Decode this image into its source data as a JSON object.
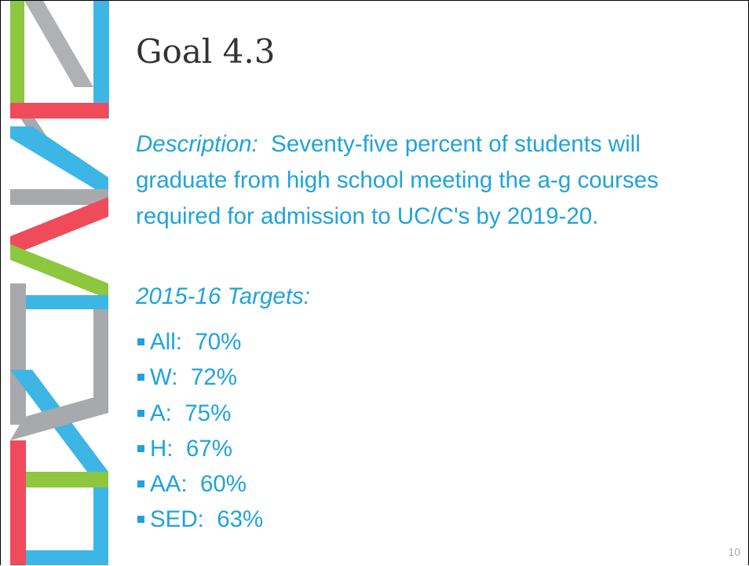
{
  "slide": {
    "title": "Goal 4.3",
    "description_label": "Description:",
    "description": "Seventy-five percent of students will graduate from high school meeting the a-g courses required for admission to UC/C's by 2019-20.",
    "targets_heading": "2015-16 Targets:",
    "targets": [
      "All:  70%",
      "W:  72%",
      "A:  75%",
      "H:  67%",
      "AA:  60%",
      "SED:  63%"
    ],
    "page_number": "10"
  }
}
